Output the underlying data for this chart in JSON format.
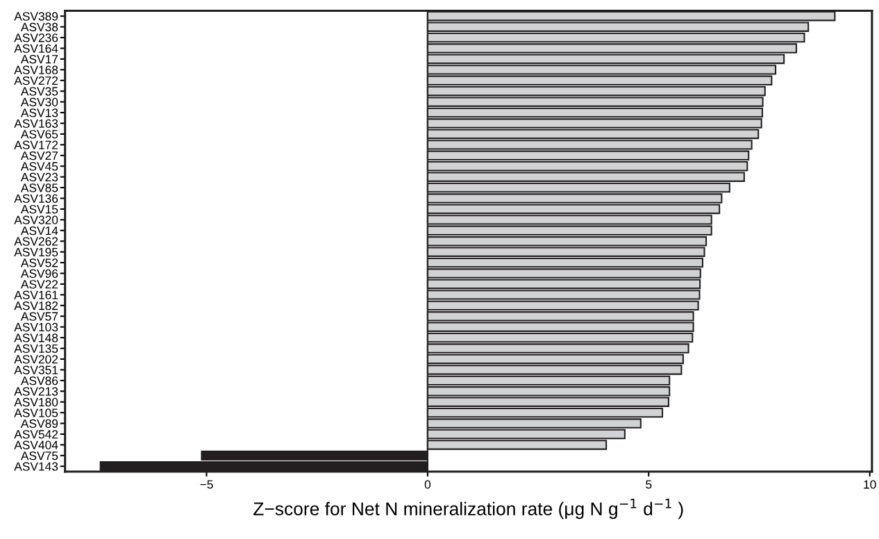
{
  "chart_data": {
    "type": "bar",
    "orientation": "horizontal",
    "xlabel": "Z−score for Net N mineralization rate (μg N g$^{−1}$ d$^{−1}$ )",
    "categories": [
      "ASV389",
      "ASV38",
      "ASV236",
      "ASV164",
      "ASV17",
      "ASV168",
      "ASV272",
      "ASV35",
      "ASV30",
      "ASV13",
      "ASV163",
      "ASV65",
      "ASV172",
      "ASV27",
      "ASV45",
      "ASV23",
      "ASV85",
      "ASV136",
      "ASV15",
      "ASV320",
      "ASV14",
      "ASV262",
      "ASV195",
      "ASV52",
      "ASV96",
      "ASV22",
      "ASV161",
      "ASV182",
      "ASV57",
      "ASV103",
      "ASV148",
      "ASV135",
      "ASV202",
      "ASV351",
      "ASV86",
      "ASV213",
      "ASV180",
      "ASV105",
      "ASV89",
      "ASV542",
      "ASV404",
      "ASV75",
      "ASV143"
    ],
    "values": [
      9.21,
      8.61,
      8.52,
      8.34,
      8.06,
      7.87,
      7.78,
      7.63,
      7.58,
      7.57,
      7.55,
      7.48,
      7.33,
      7.26,
      7.23,
      7.16,
      6.83,
      6.65,
      6.6,
      6.42,
      6.42,
      6.3,
      6.26,
      6.22,
      6.17,
      6.16,
      6.15,
      6.12,
      6.01,
      6.01,
      5.99,
      5.9,
      5.78,
      5.74,
      5.47,
      5.47,
      5.45,
      5.31,
      4.82,
      4.46,
      4.04,
      -5.11,
      -7.4
    ],
    "colors": [
      "#d1d2d4",
      "#d1d2d4",
      "#d1d2d4",
      "#d1d2d4",
      "#d1d2d4",
      "#d1d2d4",
      "#d1d2d4",
      "#d1d2d4",
      "#d1d2d4",
      "#d1d2d4",
      "#d1d2d4",
      "#d1d2d4",
      "#d1d2d4",
      "#d1d2d4",
      "#d1d2d4",
      "#d1d2d4",
      "#d1d2d4",
      "#d1d2d4",
      "#d1d2d4",
      "#d1d2d4",
      "#d1d2d4",
      "#d1d2d4",
      "#d1d2d4",
      "#d1d2d4",
      "#d1d2d4",
      "#d1d2d4",
      "#d1d2d4",
      "#d1d2d4",
      "#d1d2d4",
      "#d1d2d4",
      "#d1d2d4",
      "#d1d2d4",
      "#d1d2d4",
      "#d1d2d4",
      "#d1d2d4",
      "#d1d2d4",
      "#d1d2d4",
      "#d1d2d4",
      "#d1d2d4",
      "#d1d2d4",
      "#d1d2d4",
      "#231f20",
      "#231f20"
    ],
    "xlim": [
      -8.2,
      10.05
    ],
    "xticks": [
      {
        "value": -5,
        "label": "−5"
      },
      0,
      5,
      10
    ],
    "ref_lines": [
      {
        "axis": "x",
        "value": 0,
        "color": "#231f20"
      }
    ],
    "grid": false
  }
}
